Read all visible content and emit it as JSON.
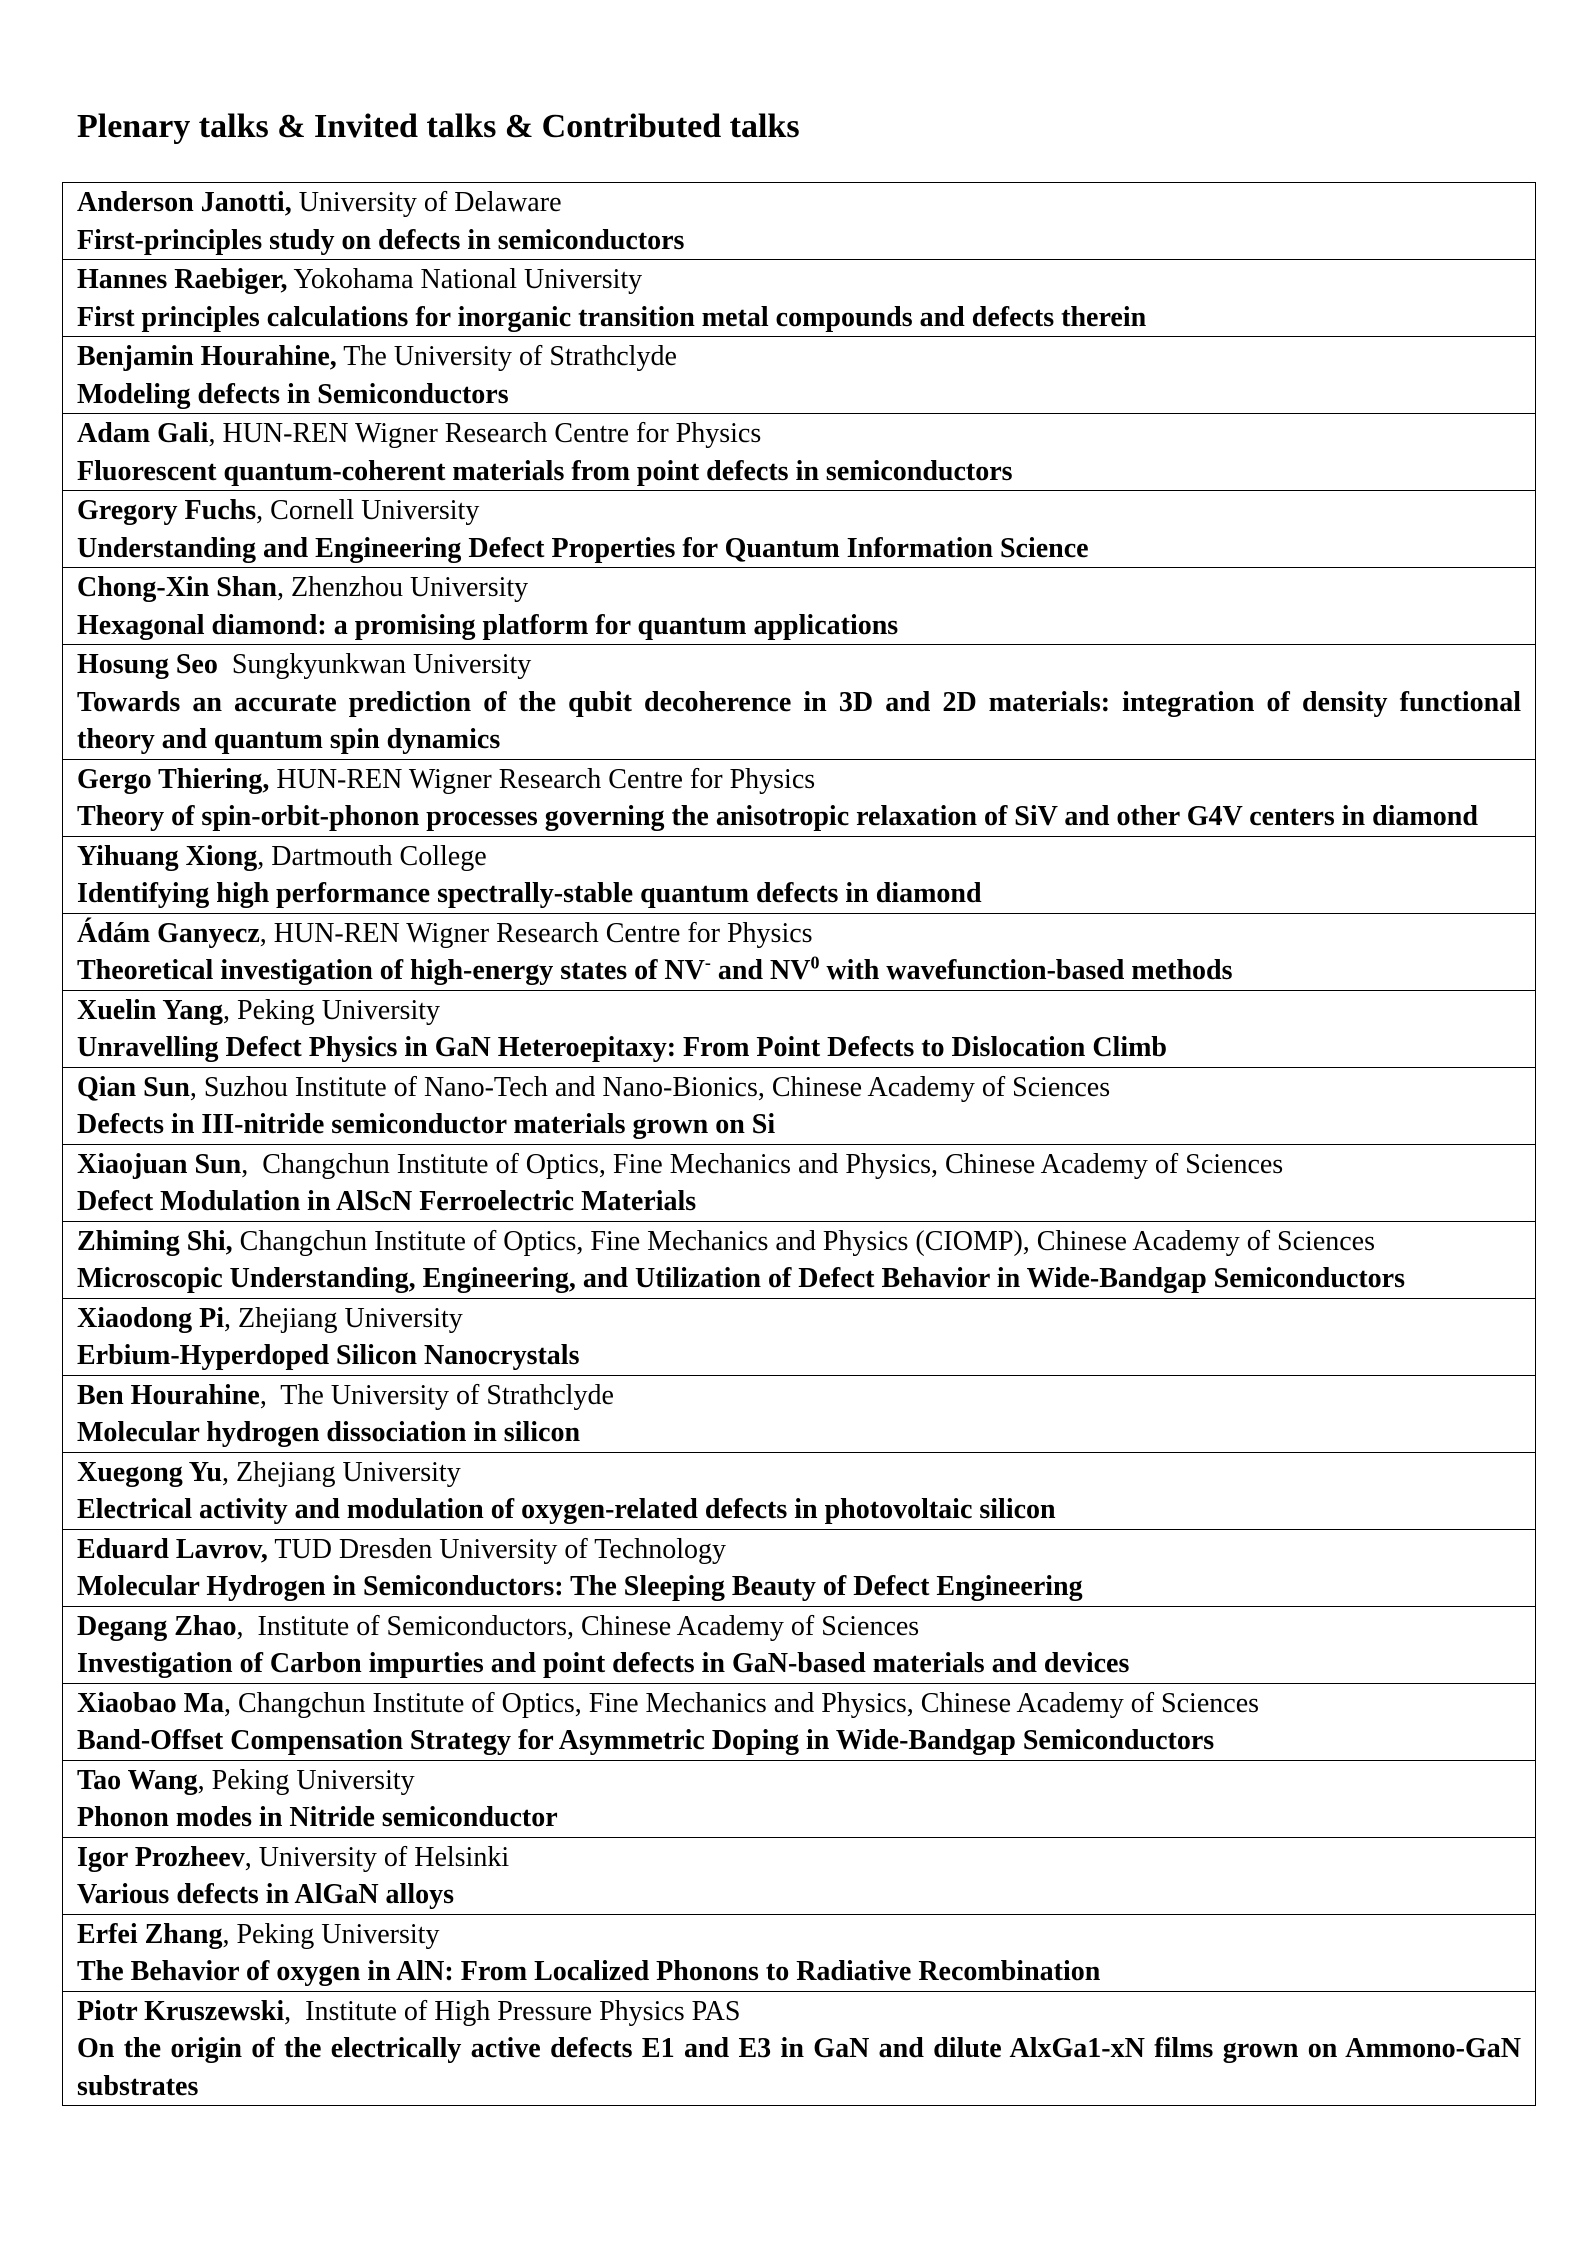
{
  "heading": "Plenary talks & Invited talks & Contributed talks",
  "talks": [
    {
      "name": "Anderson Janotti,",
      "affiliation": " University of Delaware",
      "title": [
        {
          "t": "First-principles study on defects in semiconductors"
        }
      ]
    },
    {
      "name": "Hannes Raebiger,",
      "affiliation": " Yokohama National University",
      "title": [
        {
          "t": "First principles calculations for inorganic transition metal compounds and defects therein"
        }
      ]
    },
    {
      "name": "Benjamin Hourahine,",
      "affiliation": " The University of Strathclyde",
      "title": [
        {
          "t": "Modeling defects in Semiconductors"
        }
      ]
    },
    {
      "name": "Adam Gali",
      "affiliation": ", HUN-REN Wigner Research Centre for Physics",
      "title": [
        {
          "t": "Fluorescent quantum-coherent materials from point defects in semiconductors"
        }
      ]
    },
    {
      "name": "Gregory Fuchs",
      "affiliation": ", Cornell University",
      "title": [
        {
          "t": "Understanding and Engineering Defect Properties for Quantum Information Science"
        }
      ]
    },
    {
      "name": "Chong-Xin Shan",
      "affiliation": ", Zhenzhou University",
      "title": [
        {
          "t": "Hexagonal diamond: a promising platform for quantum applications"
        }
      ]
    },
    {
      "name": "Hosung Seo",
      "affiliation": "  Sungkyunkwan University",
      "title": [
        {
          "t": "Towards an accurate prediction of the qubit decoherence in 3D and 2D materials: integration of density functional theory and quantum spin dynamics"
        }
      ]
    },
    {
      "name": "Gergo Thiering,",
      "affiliation": " HUN-REN Wigner Research Centre for Physics",
      "title": [
        {
          "t": "Theory of spin-orbit-phonon processes governing the anisotropic relaxation of SiV and other G4V centers in diamond"
        }
      ]
    },
    {
      "name": "Yihuang Xiong",
      "affiliation": ", Dartmouth College",
      "title": [
        {
          "t": "Identifying high performance spectrally-stable quantum defects in diamond"
        }
      ]
    },
    {
      "name": "Ádám Ganyecz",
      "affiliation": ", HUN-REN Wigner Research Centre for Physics",
      "title": [
        {
          "t": "Theoretical investigation of high-energy states of NV"
        },
        {
          "sup": "-"
        },
        {
          "t": " and NV"
        },
        {
          "sup": "0"
        },
        {
          "t": " with wavefunction-based methods"
        }
      ]
    },
    {
      "name": "Xuelin Yang",
      "affiliation": ", Peking University",
      "title": [
        {
          "t": "Unravelling Defect Physics in GaN Heteroepitaxy: From Point Defects to Dislocation Climb"
        }
      ]
    },
    {
      "name": "Qian Sun",
      "affiliation": ", Suzhou Institute of Nano-Tech and Nano-Bionics, Chinese Academy of Sciences",
      "title": [
        {
          "t": "Defects in III-nitride semiconductor materials grown on Si"
        }
      ]
    },
    {
      "name": "Xiaojuan Sun",
      "affiliation": ",  Changchun Institute of Optics, Fine Mechanics and Physics, Chinese Academy of Sciences",
      "title": [
        {
          "t": "Defect Modulation in AlScN Ferroelectric Materials"
        }
      ]
    },
    {
      "name": "Zhiming Shi,",
      "affiliation": " Changchun Institute of Optics, Fine Mechanics and Physics (CIOMP), Chinese Academy of Sciences",
      "title": [
        {
          "t": "Microscopic Understanding, Engineering, and Utilization of Defect Behavior in Wide-Bandgap Semiconductors"
        }
      ]
    },
    {
      "name": "Xiaodong Pi",
      "affiliation": ", Zhejiang University",
      "title": [
        {
          "t": "Erbium-Hyperdoped Silicon Nanocrystals"
        }
      ]
    },
    {
      "name": "Ben Hourahine",
      "affiliation": ",  The University of Strathclyde",
      "title": [
        {
          "t": "Molecular hydrogen dissociation in silicon"
        }
      ]
    },
    {
      "name": "Xuegong Yu",
      "affiliation": ", Zhejiang University",
      "title": [
        {
          "t": "Electrical activity and modulation of oxygen-related defects in photovoltaic silicon"
        }
      ]
    },
    {
      "name": "Eduard Lavrov,",
      "affiliation": " TUD Dresden University of Technology",
      "title": [
        {
          "t": "Molecular Hydrogen in Semiconductors: The Sleeping Beauty of Defect Engineering"
        }
      ]
    },
    {
      "name": "Degang Zhao",
      "affiliation": ",  Institute of Semiconductors, Chinese Academy of Sciences",
      "title": [
        {
          "t": "Investigation of Carbon impurties and point defects in GaN-based materials and devices"
        }
      ]
    },
    {
      "name": "Xiaobao Ma",
      "affiliation": ", Changchun Institute of Optics, Fine Mechanics and Physics, Chinese Academy of Sciences",
      "title": [
        {
          "t": "Band-Offset Compensation Strategy for Asymmetric Doping in Wide-Bandgap Semiconductors"
        }
      ]
    },
    {
      "name": "Tao Wang",
      "affiliation": ", Peking University",
      "title": [
        {
          "t": "Phonon modes in Nitride semiconductor"
        }
      ]
    },
    {
      "name": "Igor Prozheev",
      "affiliation": ", University of Helsinki",
      "title": [
        {
          "t": "Various defects in AlGaN alloys"
        }
      ]
    },
    {
      "name": "Erfei Zhang",
      "affiliation": ", Peking University",
      "title": [
        {
          "t": "The Behavior of oxygen in AlN: From Localized Phonons to Radiative Recombination"
        }
      ]
    },
    {
      "name": "Piotr Kruszewski",
      "affiliation": ",  Institute of High Pressure Physics PAS",
      "title": [
        {
          "t": "On the origin of the electrically active defects E1 and E3 in GaN and dilute AlxGa1-xN films grown on Ammono-GaN substrates"
        }
      ]
    }
  ]
}
